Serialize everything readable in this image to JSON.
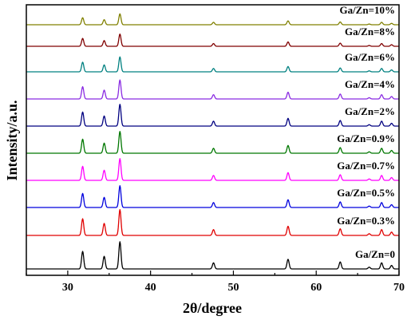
{
  "chart_data": {
    "type": "line",
    "title": "",
    "xlabel": "2θ/degree",
    "ylabel": "Intensity/a.u.",
    "xlim": [
      25,
      70
    ],
    "xticks": [
      30,
      40,
      50,
      60,
      70
    ],
    "grid": false,
    "peaks": [
      {
        "x": 31.8,
        "h": 1.0
      },
      {
        "x": 34.4,
        "h": 0.72
      },
      {
        "x": 36.3,
        "h": 1.55
      },
      {
        "x": 47.6,
        "h": 0.35
      },
      {
        "x": 56.6,
        "h": 0.55
      },
      {
        "x": 62.9,
        "h": 0.4
      },
      {
        "x": 66.4,
        "h": 0.1
      },
      {
        "x": 67.9,
        "h": 0.35
      },
      {
        "x": 69.1,
        "h": 0.2
      }
    ],
    "series": [
      {
        "name": "Ga/Zn=0",
        "color": "#000000",
        "scale": 1.0
      },
      {
        "name": "Ga/Zn=0.3%",
        "color": "#e00000",
        "scale": 0.95
      },
      {
        "name": "Ga/Zn=0.5%",
        "color": "#0000dd",
        "scale": 0.8
      },
      {
        "name": "Ga/Zn=0.7%",
        "color": "#ff00ff",
        "scale": 0.8
      },
      {
        "name": "Ga/Zn=0.9%",
        "color": "#007700",
        "scale": 0.8
      },
      {
        "name": "Ga/Zn=2%",
        "color": "#000080",
        "scale": 0.8
      },
      {
        "name": "Ga/Zn=4%",
        "color": "#8a2be2",
        "scale": 0.7
      },
      {
        "name": "Ga/Zn=6%",
        "color": "#008080",
        "scale": 0.55
      },
      {
        "name": "Ga/Zn=8%",
        "color": "#800000",
        "scale": 0.45
      },
      {
        "name": "Ga/Zn=10%",
        "color": "#808000",
        "scale": 0.4
      }
    ]
  }
}
